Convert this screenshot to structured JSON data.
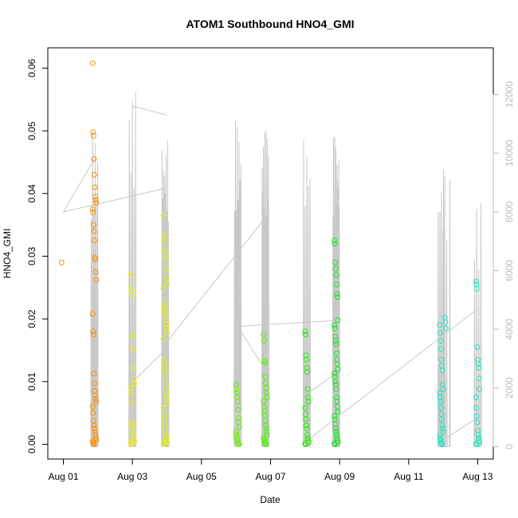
{
  "chart_data": {
    "type": "scatter",
    "title": "ATOM1 Southbound HNO4_GMI",
    "xlabel": "Date",
    "ylabel": "HNO4_GMI",
    "x_ticks": [
      "Aug 01",
      "Aug 03",
      "Aug 05",
      "Aug 07",
      "Aug 09",
      "Aug 11",
      "Aug 13"
    ],
    "x_range_days": [
      0.0,
      12.3
    ],
    "y_left_range": [
      -0.002,
      0.0615
    ],
    "y_left_ticks": [
      "0.00",
      "0.01",
      "0.02",
      "0.03",
      "0.04",
      "0.05",
      "0.06"
    ],
    "y_right_range": [
      -400,
      12400
    ],
    "y_right_ticks": [
      "0",
      "2000",
      "4000",
      "6000",
      "8000",
      "10000",
      "12000"
    ],
    "right_axis_color": "#bdbdbd",
    "line_color": "#c8c8c8",
    "point_series": [
      {
        "day": 0.0,
        "color": "#ff8c00",
        "values": [
          0.029
        ]
      },
      {
        "day": 0.9,
        "color": "#ff8c00",
        "values": [
          0.0608,
          0.0498,
          0.0492,
          0.0455,
          0.043,
          0.041,
          0.0395,
          0.039,
          0.0385,
          0.0375,
          0.037,
          0.035,
          0.034,
          0.0325,
          0.0298,
          0.0295,
          0.0275,
          0.0262,
          0.0208,
          0.018,
          0.0175,
          0.0113,
          0.0097,
          0.0085,
          0.0078,
          0.0072,
          0.0068,
          0.006,
          0.005,
          0.0038,
          0.003,
          0.0025,
          0.002,
          0.0015,
          0.001,
          0.0007,
          0.0005,
          0.0003,
          0.0001,
          0.0
        ]
      },
      {
        "day": 2.0,
        "color": "#f2f200",
        "values": [
          0.027,
          0.025,
          0.0245,
          0.0238,
          0.0173,
          0.0152,
          0.0122,
          0.0105,
          0.0097,
          0.009,
          0.008,
          0.0065,
          0.0035,
          0.003,
          0.002,
          0.0015,
          0.0008,
          0.0005,
          0.0002,
          0.0
        ]
      },
      {
        "day": 2.95,
        "color": "#e3f500",
        "values": [
          0.0365,
          0.0335,
          0.0325,
          0.031,
          0.0302,
          0.0295,
          0.028,
          0.0265,
          0.0255,
          0.0248,
          0.0225,
          0.0218,
          0.0212,
          0.0205,
          0.0198,
          0.0192,
          0.0185,
          0.0178,
          0.0168,
          0.0135,
          0.0125,
          0.0118,
          0.0108,
          0.0095,
          0.0085,
          0.0075,
          0.0065,
          0.0058,
          0.0048,
          0.004,
          0.003,
          0.0022,
          0.0015,
          0.001,
          0.0006,
          0.0003,
          0.0001,
          0.0
        ]
      },
      {
        "day": 5.05,
        "color": "#6ef000",
        "values": [
          0.0095,
          0.0088,
          0.0082,
          0.0075,
          0.0068,
          0.0055,
          0.0042,
          0.0035,
          0.0028,
          0.002,
          0.0015,
          0.001,
          0.0006,
          0.0003,
          0.0001,
          0.0
        ]
      },
      {
        "day": 5.85,
        "color": "#4ef500",
        "values": [
          0.0175,
          0.0165,
          0.0133,
          0.013,
          0.0108,
          0.0098,
          0.009,
          0.0082,
          0.0075,
          0.0068,
          0.006,
          0.0053,
          0.0045,
          0.0038,
          0.003,
          0.0025,
          0.002,
          0.0015,
          0.001,
          0.0008,
          0.0005,
          0.0003,
          0.0001,
          0.0
        ]
      },
      {
        "day": 7.05,
        "color": "#22f200",
        "values": [
          0.018,
          0.0175,
          0.0142,
          0.0135,
          0.0122,
          0.0115,
          0.0088,
          0.0075,
          0.0068,
          0.0058,
          0.0048,
          0.004,
          0.003,
          0.0025,
          0.0015,
          0.001,
          0.0006,
          0.0003,
          0.0001,
          0.0
        ]
      },
      {
        "day": 7.9,
        "color": "#16e620",
        "values": [
          0.0325,
          0.032,
          0.029,
          0.028,
          0.027,
          0.0255,
          0.024,
          0.0235,
          0.0198,
          0.019,
          0.0185,
          0.0172,
          0.0165,
          0.016,
          0.0145,
          0.0135,
          0.0128,
          0.012,
          0.0113,
          0.0108,
          0.01,
          0.0095,
          0.0088,
          0.0075,
          0.0068,
          0.006,
          0.0052,
          0.0045,
          0.004,
          0.0032,
          0.0025,
          0.002,
          0.0015,
          0.001,
          0.0006,
          0.0003,
          0.0001,
          0.0
        ]
      },
      {
        "day": 10.95,
        "color": "#1ee8c3",
        "values": [
          0.019,
          0.0178,
          0.0165,
          0.0152,
          0.0135,
          0.0125,
          0.0118,
          0.0095,
          0.0088,
          0.0082,
          0.0075,
          0.0068,
          0.0058,
          0.0048,
          0.004,
          0.003,
          0.0025,
          0.002,
          0.0015,
          0.001,
          0.0006,
          0.0003,
          0.0001,
          0.0
        ]
      },
      {
        "day": 11.1,
        "color": "#1ee8c3",
        "values": [
          0.0202,
          0.0195,
          0.0185
        ]
      },
      {
        "day": 12.0,
        "color": "#1ee8c3",
        "values": [
          0.026,
          0.0255,
          0.0248,
          0.0155,
          0.0135,
          0.0128,
          0.0122,
          0.0105,
          0.0088,
          0.0075,
          0.0058,
          0.0045,
          0.0035,
          0.0022,
          0.0015,
          0.001,
          0.0006,
          0.0003,
          0.0001,
          0.0
        ]
      }
    ],
    "altitude_connectors": [
      {
        "day": 0.0,
        "alt": 8000
      },
      {
        "day": 0.9,
        "alt": 9800
      },
      {
        "day": 0.0,
        "alt": 8000
      },
      {
        "day": 2.95,
        "alt": 8800
      },
      {
        "day": 2.0,
        "alt": 2200
      },
      {
        "day": 2.95,
        "alt": 3300
      },
      {
        "day": 2.0,
        "alt": 11600
      },
      {
        "day": 3.0,
        "alt": 11300
      },
      {
        "day": 2.95,
        "alt": 3500
      },
      {
        "day": 5.85,
        "alt": 7800
      },
      {
        "day": 5.05,
        "alt": 4100
      },
      {
        "day": 5.85,
        "alt": 2600
      },
      {
        "day": 5.05,
        "alt": 4100
      },
      {
        "day": 7.9,
        "alt": 4300
      },
      {
        "day": 7.05,
        "alt": 1800
      },
      {
        "day": 7.9,
        "alt": 2500
      },
      {
        "day": 7.05,
        "alt": 200
      },
      {
        "day": 12.0,
        "alt": 4700
      },
      {
        "day": 11.1,
        "alt": 300
      },
      {
        "day": 12.0,
        "alt": 1000
      }
    ],
    "altitude_profiles": [
      {
        "day": 0.9,
        "peak": 10800,
        "spikes": 6
      },
      {
        "day": 2.0,
        "peak": 12100,
        "spikes": 5
      },
      {
        "day": 2.95,
        "peak": 10600,
        "spikes": 9
      },
      {
        "day": 5.05,
        "peak": 11100,
        "spikes": 8
      },
      {
        "day": 5.85,
        "peak": 10800,
        "spikes": 11
      },
      {
        "day": 7.05,
        "peak": 10700,
        "spikes": 5
      },
      {
        "day": 7.9,
        "peak": 10600,
        "spikes": 12
      },
      {
        "day": 10.95,
        "peak": 9500,
        "spikes": 5
      },
      {
        "day": 11.1,
        "peak": 9500,
        "spikes": 3
      },
      {
        "day": 12.0,
        "peak": 8300,
        "spikes": 4
      }
    ]
  }
}
